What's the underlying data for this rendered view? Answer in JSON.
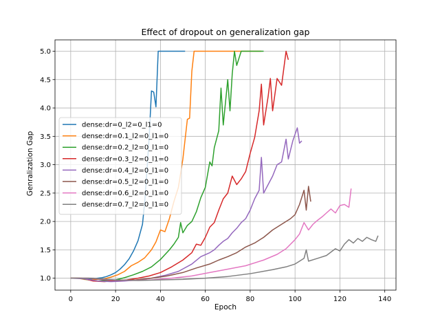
{
  "chart_data": {
    "type": "line",
    "title": "Effect of dropout on generalization gap",
    "xlabel": "Epoch",
    "ylabel": "Genralization Gap",
    "xlim": [
      -7,
      145
    ],
    "ylim": [
      0.79,
      5.2
    ],
    "xticks": [
      0,
      20,
      40,
      60,
      80,
      100,
      120,
      140
    ],
    "yticks": [
      1.0,
      1.5,
      2.0,
      2.5,
      3.0,
      3.5,
      4.0,
      4.5,
      5.0
    ],
    "xtick_labels": [
      "0",
      "20",
      "40",
      "60",
      "80",
      "100",
      "120",
      "140"
    ],
    "ytick_labels": [
      "1.0",
      "1.5",
      "2.0",
      "2.5",
      "3.0",
      "3.5",
      "4.0",
      "4.5",
      "5.0"
    ],
    "grid": true,
    "legend_position": "center-left",
    "series": [
      {
        "name": "dense:dr=0_l2=0_l1=0",
        "color": "#1f77b4",
        "points": [
          [
            0,
            1.0
          ],
          [
            2,
            1.0
          ],
          [
            4,
            1.0
          ],
          [
            6,
            0.99
          ],
          [
            8,
            0.98
          ],
          [
            10,
            0.99
          ],
          [
            12,
            1.0
          ],
          [
            14,
            1.01
          ],
          [
            16,
            1.03
          ],
          [
            18,
            1.06
          ],
          [
            20,
            1.1
          ],
          [
            22,
            1.16
          ],
          [
            24,
            1.24
          ],
          [
            26,
            1.34
          ],
          [
            28,
            1.48
          ],
          [
            30,
            1.66
          ],
          [
            32,
            1.95
          ],
          [
            33,
            2.35
          ],
          [
            34,
            2.9
          ],
          [
            35,
            3.5
          ],
          [
            36,
            4.3
          ],
          [
            37,
            4.28
          ],
          [
            38,
            4.02
          ],
          [
            39,
            5.0
          ],
          [
            42,
            5.0
          ],
          [
            45,
            5.0
          ],
          [
            48,
            5.0
          ],
          [
            51,
            5.0
          ]
        ]
      },
      {
        "name": "dense:dr=0.1_l2=0_l1=0",
        "color": "#ff7f0e",
        "points": [
          [
            0,
            1.0
          ],
          [
            3,
            1.0
          ],
          [
            6,
            0.98
          ],
          [
            9,
            0.97
          ],
          [
            12,
            0.98
          ],
          [
            15,
            0.99
          ],
          [
            18,
            1.02
          ],
          [
            21,
            1.06
          ],
          [
            24,
            1.12
          ],
          [
            27,
            1.22
          ],
          [
            30,
            1.28
          ],
          [
            33,
            1.36
          ],
          [
            36,
            1.5
          ],
          [
            38,
            1.64
          ],
          [
            40,
            1.85
          ],
          [
            42,
            1.82
          ],
          [
            44,
            2.05
          ],
          [
            46,
            2.35
          ],
          [
            48,
            2.6
          ],
          [
            50,
            3.1
          ],
          [
            52,
            3.8
          ],
          [
            53,
            3.82
          ],
          [
            54,
            4.65
          ],
          [
            55,
            5.0
          ],
          [
            60,
            5.0
          ],
          [
            65,
            5.0
          ],
          [
            70,
            5.0
          ],
          [
            75,
            5.0
          ],
          [
            80,
            5.0
          ],
          [
            85,
            5.0
          ]
        ]
      },
      {
        "name": "dense:dr=0.2_l2=0_l1=0",
        "color": "#2ca02c",
        "points": [
          [
            0,
            1.0
          ],
          [
            4,
            1.0
          ],
          [
            8,
            0.97
          ],
          [
            12,
            0.95
          ],
          [
            16,
            0.96
          ],
          [
            20,
            0.97
          ],
          [
            24,
            1.01
          ],
          [
            28,
            1.06
          ],
          [
            32,
            1.12
          ],
          [
            36,
            1.2
          ],
          [
            40,
            1.33
          ],
          [
            44,
            1.5
          ],
          [
            46,
            1.6
          ],
          [
            48,
            1.72
          ],
          [
            49,
            1.98
          ],
          [
            50,
            1.8
          ],
          [
            52,
            1.93
          ],
          [
            54,
            2.0
          ],
          [
            56,
            2.17
          ],
          [
            58,
            2.42
          ],
          [
            60,
            2.6
          ],
          [
            62,
            3.05
          ],
          [
            63,
            2.98
          ],
          [
            64,
            3.3
          ],
          [
            66,
            3.6
          ],
          [
            67,
            4.35
          ],
          [
            68,
            3.7
          ],
          [
            70,
            4.5
          ],
          [
            71,
            3.95
          ],
          [
            72,
            4.6
          ],
          [
            73,
            5.0
          ],
          [
            74,
            4.75
          ],
          [
            76,
            5.0
          ],
          [
            80,
            5.0
          ],
          [
            86,
            5.0
          ]
        ]
      },
      {
        "name": "dense:dr=0.3_l2=0_l1=0",
        "color": "#d62728",
        "points": [
          [
            0,
            1.0
          ],
          [
            5,
            1.0
          ],
          [
            10,
            0.95
          ],
          [
            15,
            0.94
          ],
          [
            20,
            0.96
          ],
          [
            25,
            0.97
          ],
          [
            30,
            1.0
          ],
          [
            35,
            1.04
          ],
          [
            40,
            1.1
          ],
          [
            45,
            1.2
          ],
          [
            50,
            1.32
          ],
          [
            54,
            1.45
          ],
          [
            56,
            1.6
          ],
          [
            58,
            1.58
          ],
          [
            60,
            1.72
          ],
          [
            62,
            1.9
          ],
          [
            64,
            1.98
          ],
          [
            66,
            2.2
          ],
          [
            68,
            2.4
          ],
          [
            70,
            2.5
          ],
          [
            72,
            2.8
          ],
          [
            74,
            2.65
          ],
          [
            76,
            2.75
          ],
          [
            78,
            2.88
          ],
          [
            80,
            3.2
          ],
          [
            82,
            3.48
          ],
          [
            84,
            3.95
          ],
          [
            85,
            4.42
          ],
          [
            86,
            3.7
          ],
          [
            88,
            4.2
          ],
          [
            89,
            4.52
          ],
          [
            90,
            3.95
          ],
          [
            92,
            4.52
          ],
          [
            94,
            4.4
          ],
          [
            96,
            5.0
          ],
          [
            97,
            4.85
          ]
        ]
      },
      {
        "name": "dense:dr=0.4_l2=0_l1=0",
        "color": "#9467bd",
        "points": [
          [
            0,
            1.0
          ],
          [
            6,
            0.99
          ],
          [
            12,
            0.95
          ],
          [
            18,
            0.94
          ],
          [
            24,
            0.95
          ],
          [
            30,
            0.97
          ],
          [
            36,
            1.0
          ],
          [
            42,
            1.05
          ],
          [
            48,
            1.12
          ],
          [
            54,
            1.25
          ],
          [
            58,
            1.38
          ],
          [
            62,
            1.45
          ],
          [
            64,
            1.5
          ],
          [
            66,
            1.58
          ],
          [
            68,
            1.65
          ],
          [
            70,
            1.7
          ],
          [
            72,
            1.8
          ],
          [
            74,
            1.88
          ],
          [
            76,
            1.98
          ],
          [
            78,
            2.05
          ],
          [
            80,
            2.2
          ],
          [
            82,
            2.4
          ],
          [
            84,
            2.55
          ],
          [
            85,
            3.13
          ],
          [
            86,
            2.5
          ],
          [
            88,
            2.65
          ],
          [
            90,
            2.8
          ],
          [
            92,
            3.0
          ],
          [
            94,
            3.05
          ],
          [
            96,
            3.45
          ],
          [
            97,
            3.1
          ],
          [
            99,
            3.42
          ],
          [
            101,
            3.65
          ],
          [
            102,
            3.38
          ],
          [
            103,
            3.42
          ]
        ]
      },
      {
        "name": "dense:dr=0.5_l2=0_l1=0",
        "color": "#8c564b",
        "points": [
          [
            0,
            1.0
          ],
          [
            8,
            1.0
          ],
          [
            15,
            0.97
          ],
          [
            22,
            0.96
          ],
          [
            29,
            0.97
          ],
          [
            36,
            1.0
          ],
          [
            43,
            1.04
          ],
          [
            50,
            1.1
          ],
          [
            56,
            1.18
          ],
          [
            62,
            1.25
          ],
          [
            66,
            1.32
          ],
          [
            70,
            1.38
          ],
          [
            74,
            1.45
          ],
          [
            78,
            1.55
          ],
          [
            82,
            1.62
          ],
          [
            86,
            1.72
          ],
          [
            90,
            1.85
          ],
          [
            94,
            1.95
          ],
          [
            98,
            2.05
          ],
          [
            100,
            2.12
          ],
          [
            102,
            2.3
          ],
          [
            104,
            2.55
          ],
          [
            105,
            2.2
          ],
          [
            106,
            2.62
          ],
          [
            107,
            2.35
          ]
        ]
      },
      {
        "name": "dense:dr=0.6_l2=0_l1=0",
        "color": "#e377c2",
        "points": [
          [
            0,
            1.0
          ],
          [
            9,
            1.0
          ],
          [
            18,
            0.97
          ],
          [
            27,
            0.96
          ],
          [
            36,
            0.97
          ],
          [
            45,
            1.0
          ],
          [
            54,
            1.04
          ],
          [
            62,
            1.1
          ],
          [
            70,
            1.16
          ],
          [
            78,
            1.22
          ],
          [
            86,
            1.32
          ],
          [
            92,
            1.42
          ],
          [
            96,
            1.52
          ],
          [
            100,
            1.68
          ],
          [
            102,
            1.78
          ],
          [
            104,
            1.98
          ],
          [
            106,
            1.85
          ],
          [
            108,
            1.95
          ],
          [
            110,
            2.02
          ],
          [
            112,
            2.08
          ],
          [
            114,
            2.15
          ],
          [
            116,
            2.22
          ],
          [
            118,
            2.15
          ],
          [
            120,
            2.28
          ],
          [
            122,
            2.3
          ],
          [
            124,
            2.25
          ],
          [
            125,
            2.58
          ]
        ]
      },
      {
        "name": "dense:dr=0.7_l2=0_l1=0",
        "color": "#7f7f7f",
        "points": [
          [
            0,
            1.0
          ],
          [
            10,
            1.0
          ],
          [
            20,
            0.97
          ],
          [
            30,
            0.96
          ],
          [
            40,
            0.97
          ],
          [
            50,
            0.98
          ],
          [
            60,
            1.0
          ],
          [
            70,
            1.03
          ],
          [
            80,
            1.08
          ],
          [
            90,
            1.15
          ],
          [
            96,
            1.2
          ],
          [
            100,
            1.25
          ],
          [
            104,
            1.35
          ],
          [
            105,
            1.5
          ],
          [
            106,
            1.3
          ],
          [
            110,
            1.35
          ],
          [
            114,
            1.4
          ],
          [
            118,
            1.52
          ],
          [
            120,
            1.48
          ],
          [
            122,
            1.6
          ],
          [
            124,
            1.68
          ],
          [
            126,
            1.62
          ],
          [
            128,
            1.7
          ],
          [
            130,
            1.65
          ],
          [
            132,
            1.72
          ],
          [
            134,
            1.68
          ],
          [
            136,
            1.65
          ],
          [
            137,
            1.75
          ]
        ]
      }
    ]
  }
}
